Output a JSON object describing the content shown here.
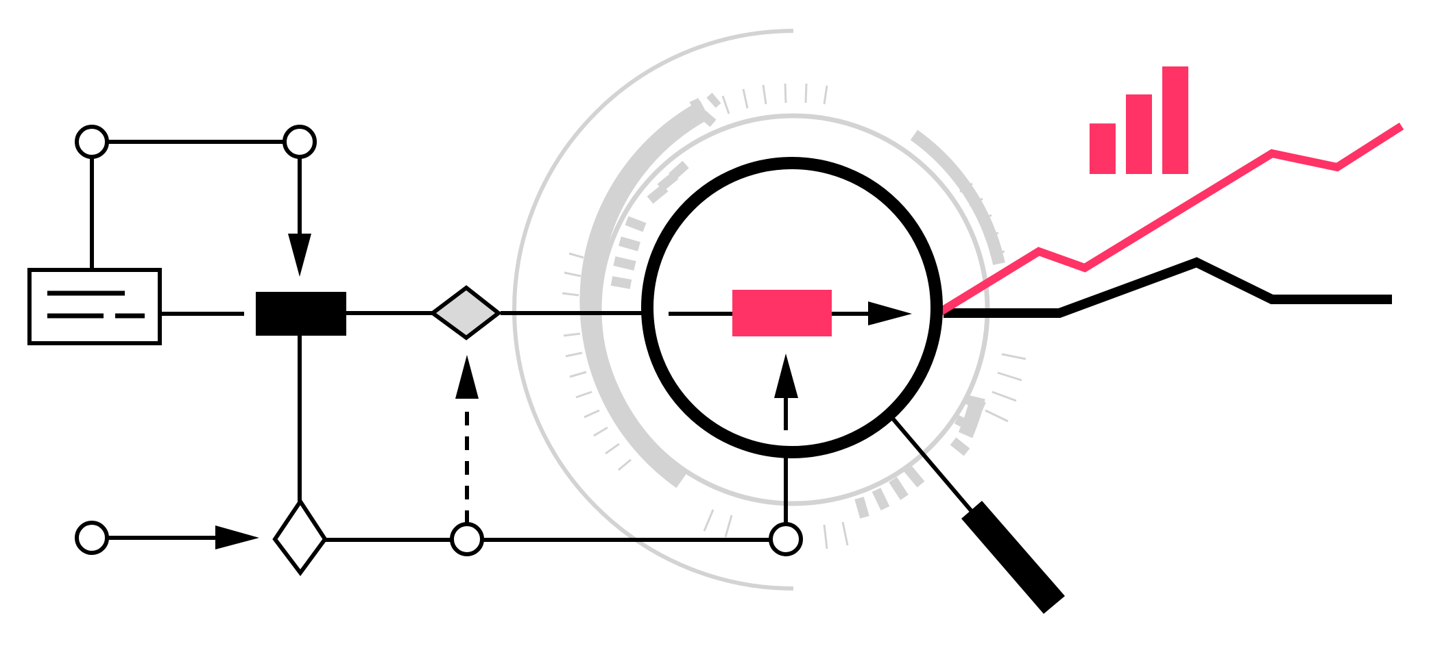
{
  "colors": {
    "ink": "#000000",
    "accent": "#ff3366",
    "light_gray": "#d4d3d4",
    "fill_gray": "#d9d9d9",
    "background": "#ffffff"
  },
  "icons": [
    "document-icon",
    "magnifier-icon",
    "bar-chart-icon",
    "trend-line-icon",
    "process-block-icon",
    "decision-diamond-icon",
    "node-circle-icon",
    "arrow-icon"
  ],
  "trend_lines": [
    {
      "color_key": "accent",
      "shape": "rising"
    },
    {
      "color_key": "ink",
      "shape": "flat-rising"
    }
  ],
  "bar_chart": {
    "values": [
      0.47,
      0.74,
      1.0
    ]
  }
}
